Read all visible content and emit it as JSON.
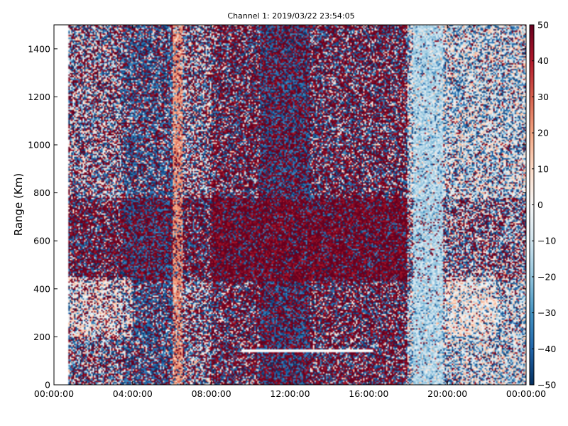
{
  "chart_data": {
    "type": "heatmap",
    "title": "Channel 1: 2019/03/22 23:54:05",
    "xlabel": "",
    "ylabel": "Range (Km)",
    "xlim": [
      "00:00:00",
      "00:00:00"
    ],
    "x_ticks": [
      "00:00:00",
      "04:00:00",
      "08:00:00",
      "12:00:00",
      "16:00:00",
      "20:00:00",
      "00:00:00"
    ],
    "ylim": [
      0,
      1500
    ],
    "y_ticks": [
      "0",
      "200",
      "400",
      "600",
      "800",
      "1000",
      "1200",
      "1400"
    ],
    "colorbar": {
      "colormap": "RdBu_r",
      "range": [
        -50,
        50
      ],
      "ticks": [
        "−50",
        "−40",
        "−30",
        "−20",
        "−10",
        "0",
        "10",
        "20",
        "30",
        "40",
        "50"
      ]
    },
    "colors": {
      "low": "#053061",
      "mid": "#f7f7f7",
      "high": "#67001f"
    },
    "features": [
      {
        "time_start_h": 6.0,
        "time_end_h": 6.5,
        "value": 20
      },
      {
        "time_start_h": 18.3,
        "time_end_h": 19.8,
        "value": -15
      },
      {
        "time_start_h": 9.5,
        "time_end_h": 16.2,
        "range_km": 140,
        "value": 0
      }
    ]
  }
}
